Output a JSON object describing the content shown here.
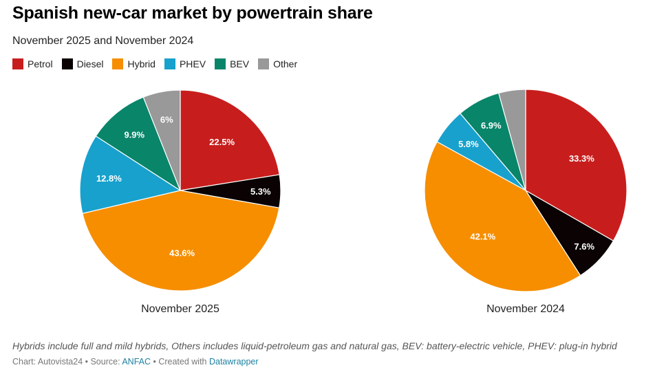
{
  "title": "Spanish new-car market by powertrain share",
  "subtitle": "November 2025 and November 2024",
  "legend": [
    {
      "label": "Petrol",
      "color": "#c71e1d"
    },
    {
      "label": "Diesel",
      "color": "#0b0303"
    },
    {
      "label": "Hybrid",
      "color": "#f68e00"
    },
    {
      "label": "PHEV",
      "color": "#18a1cd"
    },
    {
      "label": "BEV",
      "color": "#09856a"
    },
    {
      "label": "Other",
      "color": "#999999"
    }
  ],
  "chart_data": [
    {
      "type": "pie",
      "title": "November 2025",
      "categories": [
        "Petrol",
        "Diesel",
        "Hybrid",
        "PHEV",
        "BEV",
        "Other"
      ],
      "values": [
        22.5,
        5.3,
        43.6,
        12.8,
        9.9,
        6
      ],
      "labels": [
        "22.5%",
        "5.3%",
        "43.6%",
        "12.8%",
        "9.9%",
        "6%"
      ]
    },
    {
      "type": "pie",
      "title": "November 2024",
      "categories": [
        "Petrol",
        "Diesel",
        "Hybrid",
        "PHEV",
        "BEV",
        "Other"
      ],
      "values": [
        33.3,
        7.6,
        42.1,
        5.8,
        6.9,
        4.3
      ],
      "labels": [
        "33.3%",
        "7.6%",
        "42.1%",
        "5.8%",
        "6.9%",
        ""
      ]
    }
  ],
  "footer": {
    "note": "Hybrids include full and mild hybrids, Others includes liquid-petroleum gas and natural gas, BEV: battery-electric vehicle, PHEV: plug-in hybrid",
    "chart_credit": "Chart: Autovista24 • Source: ",
    "source_link": "ANFAC",
    "created_with": " • Created with ",
    "tool_link": "Datawrapper"
  }
}
